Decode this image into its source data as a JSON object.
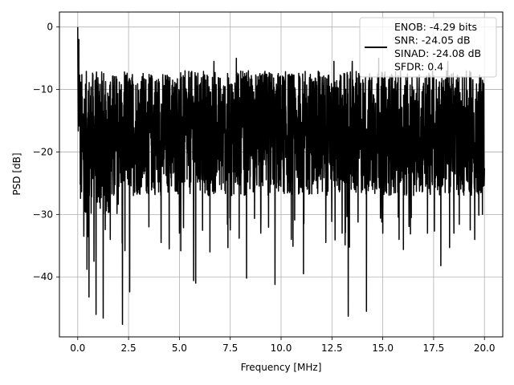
{
  "chart_data": {
    "type": "line",
    "title": "",
    "xlabel": "Frequency [MHz]",
    "ylabel": "PSD [dB]",
    "xlim": [
      -0.9,
      20.9
    ],
    "ylim": [
      -49.6,
      2.4
    ],
    "xticks": [
      0.0,
      2.5,
      5.0,
      7.5,
      10.0,
      12.5,
      15.0,
      17.5,
      20.0
    ],
    "xtick_labels": [
      "0.0",
      "2.5",
      "5.0",
      "7.5",
      "10.0",
      "12.5",
      "15.0",
      "17.5",
      "20.0"
    ],
    "yticks": [
      0,
      -10,
      -20,
      -30,
      -40
    ],
    "ytick_labels": [
      "0",
      "−10",
      "−20",
      "−30",
      "−40"
    ],
    "grid": true,
    "legend_position": "top-right",
    "series": [
      {
        "name": "ENOB: -4.29 bits\nSNR: -24.05 dB\nSINAD: -24.08 dB\nSFDR: 0.4",
        "color": "#000000",
        "x_start": 0.0,
        "x_end": 20.0,
        "typical_range": [
          -27,
          -7
        ],
        "dips": [
          {
            "x": 0.3,
            "y": -33.5
          },
          {
            "x": 0.45,
            "y": -38.8
          },
          {
            "x": 0.55,
            "y": -43.2
          },
          {
            "x": 0.8,
            "y": -37.5
          },
          {
            "x": 0.9,
            "y": -46.0
          },
          {
            "x": 1.25,
            "y": -46.6
          },
          {
            "x": 1.6,
            "y": -34.0
          },
          {
            "x": 2.2,
            "y": -47.6
          },
          {
            "x": 2.55,
            "y": -42.4
          },
          {
            "x": 3.5,
            "y": -32.0
          },
          {
            "x": 4.1,
            "y": -34.5
          },
          {
            "x": 4.5,
            "y": -35.5
          },
          {
            "x": 5.0,
            "y": -33.0
          },
          {
            "x": 5.7,
            "y": -40.6
          },
          {
            "x": 5.8,
            "y": -41.0
          },
          {
            "x": 6.5,
            "y": -36.0
          },
          {
            "x": 7.5,
            "y": -32.5
          },
          {
            "x": 8.3,
            "y": -40.2
          },
          {
            "x": 9.0,
            "y": -33.0
          },
          {
            "x": 9.7,
            "y": -41.2
          },
          {
            "x": 10.5,
            "y": -34.0
          },
          {
            "x": 11.1,
            "y": -39.5
          },
          {
            "x": 12.2,
            "y": -34.5
          },
          {
            "x": 13.0,
            "y": -33.0
          },
          {
            "x": 13.3,
            "y": -46.3
          },
          {
            "x": 14.2,
            "y": -45.5
          },
          {
            "x": 15.0,
            "y": -33.0
          },
          {
            "x": 15.8,
            "y": -34.0
          },
          {
            "x": 16.4,
            "y": -30.5
          },
          {
            "x": 17.2,
            "y": -33.0
          },
          {
            "x": 17.85,
            "y": -38.2
          },
          {
            "x": 18.5,
            "y": -33.0
          },
          {
            "x": 19.3,
            "y": -32.5
          },
          {
            "x": 19.9,
            "y": -30.0
          }
        ],
        "peaks": [
          {
            "x": 0.0,
            "y": 0.0
          },
          {
            "x": 0.05,
            "y": -2.0
          },
          {
            "x": 6.7,
            "y": -5.5
          },
          {
            "x": 7.8,
            "y": -5.0
          },
          {
            "x": 12.6,
            "y": -5.5
          },
          {
            "x": 13.5,
            "y": -5.5
          },
          {
            "x": 14.8,
            "y": -5.0
          },
          {
            "x": 18.2,
            "y": -5.5
          }
        ]
      }
    ]
  }
}
